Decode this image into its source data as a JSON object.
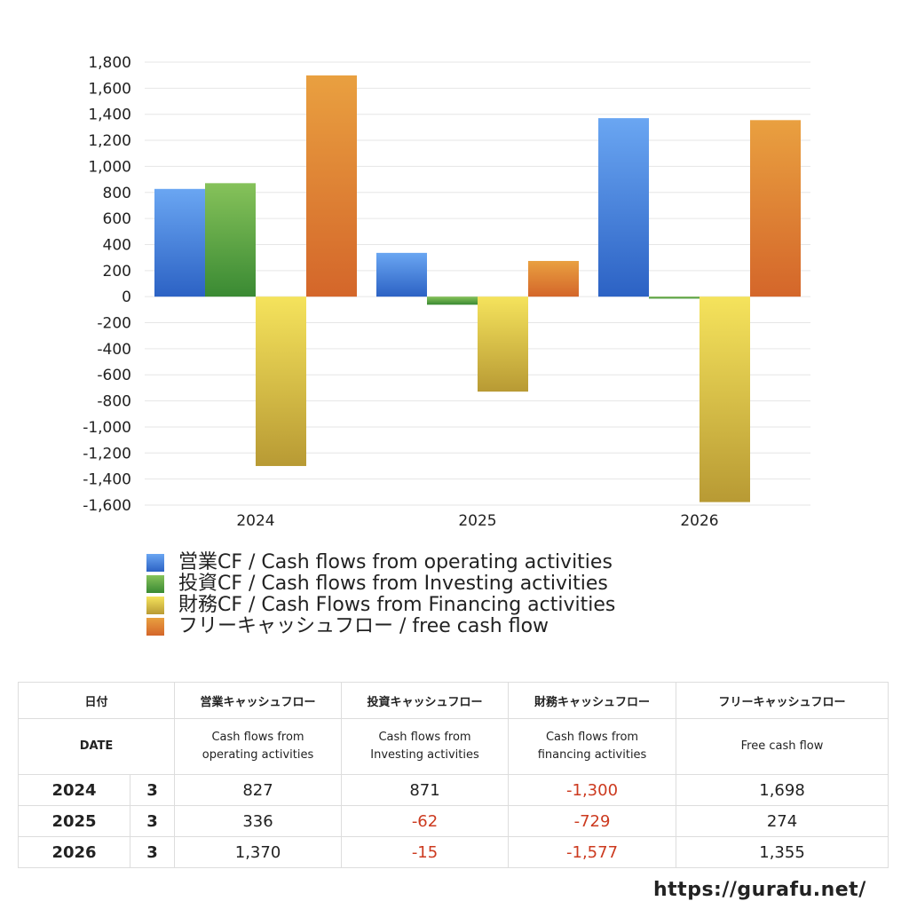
{
  "chart_data": {
    "type": "bar",
    "categories": [
      "2024",
      "2025",
      "2026"
    ],
    "series": [
      {
        "name": "営業CF / Cash flows from operating activities",
        "values": [
          827,
          336,
          1370
        ],
        "color_top": "#6aa6f2",
        "color_bottom": "#2c62c4"
      },
      {
        "name": "投資CF / Cash flows from Investing activities",
        "values": [
          871,
          -62,
          -15
        ],
        "color_top": "#86c25a",
        "color_bottom": "#3a8a33"
      },
      {
        "name": "財務CF / Cash Flows from Financing activities",
        "values": [
          -1300,
          -729,
          -1577
        ],
        "color_top": "#f5e35c",
        "color_bottom": "#b89a34"
      },
      {
        "name": "フリーキャッシュフロー / free cash flow",
        "values": [
          1698,
          274,
          1355
        ],
        "color_top": "#e9a040",
        "color_bottom": "#d4662a"
      }
    ],
    "ylim": [
      -1600,
      1800
    ],
    "yticks": [
      1800,
      1600,
      1400,
      1200,
      1000,
      800,
      600,
      400,
      200,
      0,
      -200,
      -400,
      -600,
      -800,
      -1000,
      -1200,
      -1400,
      -1600
    ],
    "ytick_labels": [
      "1,800",
      "1,600",
      "1,400",
      "1,200",
      "1,000",
      "800",
      "600",
      "400",
      "200",
      "0",
      "-200",
      "-400",
      "-600",
      "-800",
      "-1,000",
      "-1,200",
      "-1,400",
      "-1,600"
    ],
    "grid": true,
    "legend_position": "bottom-left"
  },
  "table": {
    "header_top": [
      "日付",
      "営業キャッシュフロー",
      "投資キャッシュフロー",
      "財務キャッシュフロー",
      "フリーキャッシュフロー"
    ],
    "header_bottom": {
      "date": "DATE",
      "operating": [
        "Cash flows from",
        "operating activities"
      ],
      "investing": [
        "Cash flows from",
        "Investing activities"
      ],
      "financing": [
        "Cash flows from",
        "financing activities"
      ],
      "free": "Free cash flow"
    },
    "rows": [
      {
        "year": "2024",
        "month": "3",
        "operating": "827",
        "investing": "871",
        "financing": "-1,300",
        "free": "1,698"
      },
      {
        "year": "2025",
        "month": "3",
        "operating": "336",
        "investing": "-62",
        "financing": "-729",
        "free": "274"
      },
      {
        "year": "2026",
        "month": "3",
        "operating": "1,370",
        "investing": "-15",
        "financing": "-1,577",
        "free": "1,355"
      }
    ],
    "negative_color": "#cc3a1f"
  },
  "footer": {
    "url": "https://gurafu.net/"
  }
}
